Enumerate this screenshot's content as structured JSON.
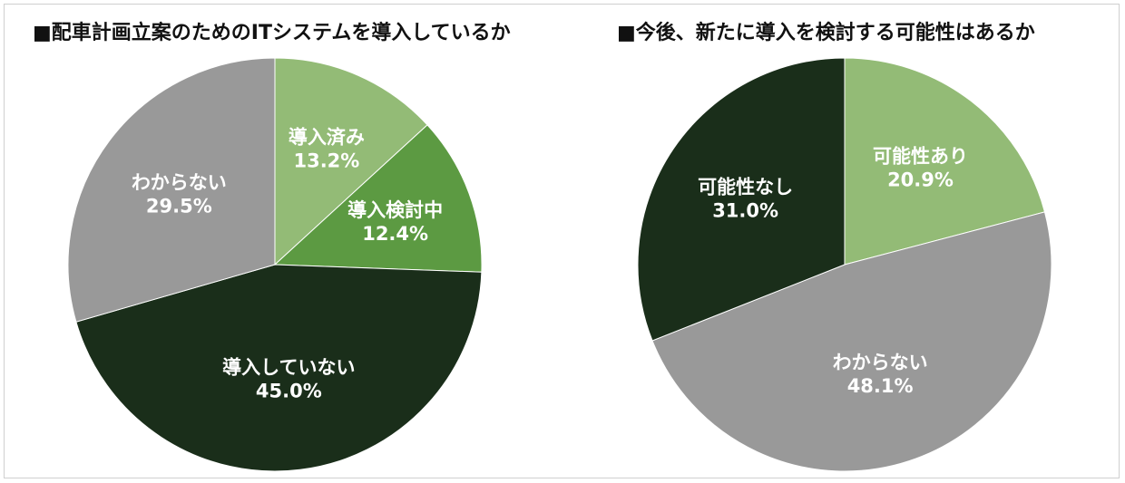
{
  "chart_data": [
    {
      "type": "pie",
      "title": "■配車計画立案のためのITシステムを導入しているか",
      "slices": [
        {
          "label": "導入済み",
          "value": 13.2,
          "value_label": "13.2%",
          "color": "#93bb76"
        },
        {
          "label": "導入検討中",
          "value": 12.4,
          "value_label": "12.4%",
          "color": "#5c9a42"
        },
        {
          "label": "導入していない",
          "value": 45.0,
          "value_label": "45.0%",
          "color": "#1a2e1a"
        },
        {
          "label": "わからない",
          "value": 29.5,
          "value_label": "29.5%",
          "color": "#999999"
        }
      ],
      "start_angle": "12 o'clock",
      "direction": "clockwise"
    },
    {
      "type": "pie",
      "title": "■今後、新たに導入を検討する可能性はあるか",
      "slices": [
        {
          "label": "可能性あり",
          "value": 20.9,
          "value_label": "20.9%",
          "color": "#93bb76"
        },
        {
          "label": "わからない",
          "value": 48.1,
          "value_label": "48.1%",
          "color": "#999999"
        },
        {
          "label": "可能性なし",
          "value": 31.0,
          "value_label": "31.0%",
          "color": "#1a2e1a"
        }
      ],
      "start_angle": "12 o'clock",
      "direction": "clockwise"
    }
  ]
}
